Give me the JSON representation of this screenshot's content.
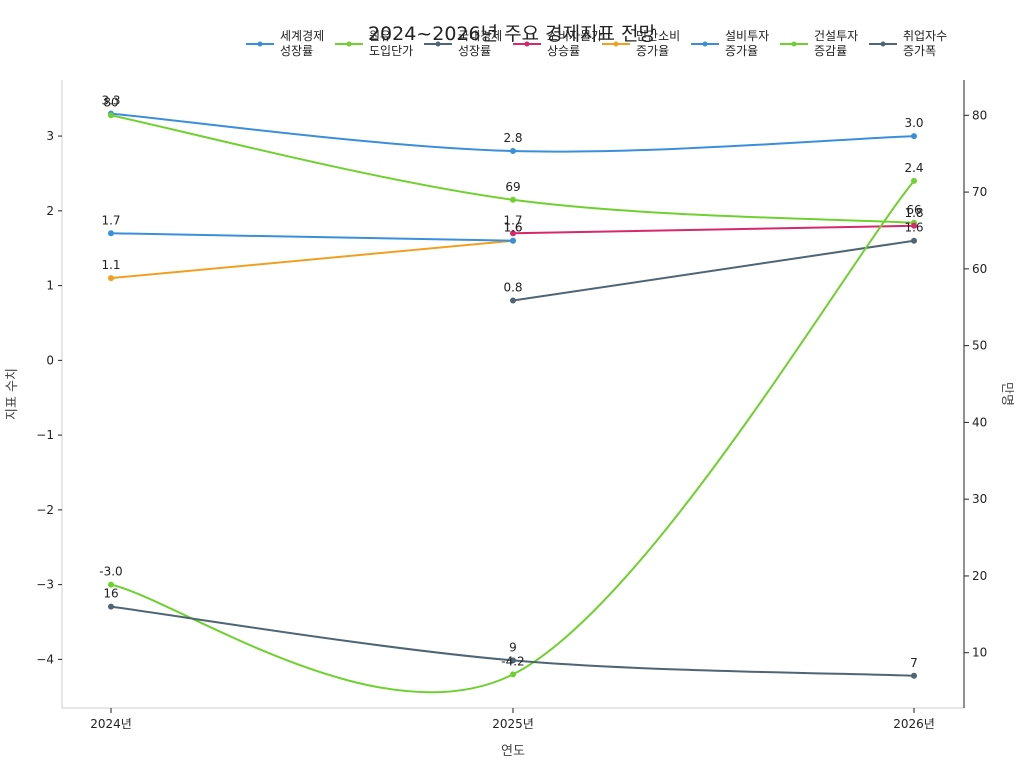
{
  "chart_data": {
    "type": "line",
    "title": "2024~2026년 주요 경제지표 전망",
    "xlabel": "연도",
    "ylabel": "지표 수치",
    "y2label": "만명",
    "categories": [
      "2024년",
      "2025년",
      "2026년"
    ],
    "ylim": [
      -4.65,
      3.75
    ],
    "y2lim": [
      2.8,
      84.6
    ],
    "yticks": [
      -4,
      -3,
      -2,
      -1,
      0,
      1,
      2,
      3
    ],
    "y2ticks": [
      10,
      20,
      30,
      40,
      50,
      60,
      70,
      80
    ],
    "legend_position": "top-right",
    "series": [
      {
        "name": "세계경제\n성장률",
        "color": "#3a8fdb",
        "axis": "left",
        "values": [
          3.3,
          2.8,
          3.0
        ],
        "labels": [
          "3.3",
          "2.8",
          "3.0"
        ]
      },
      {
        "name": "원유\n도입단가",
        "color": "#6fd12f",
        "axis": "right",
        "values": [
          80,
          69,
          66
        ],
        "labels": [
          "80",
          "69",
          "66"
        ]
      },
      {
        "name": "국내경제\n성장률",
        "color": "#4f6575",
        "axis": "left",
        "values": [
          null,
          0.8,
          1.6
        ],
        "labels": [
          "",
          "0.8",
          "1.6"
        ]
      },
      {
        "name": "소비자물가\n상승률",
        "color": "#d6286a",
        "axis": "left",
        "values": [
          null,
          1.7,
          1.8
        ],
        "labels": [
          "",
          "1.7",
          "1.8"
        ]
      },
      {
        "name": "민간소비\n증가율",
        "color": "#f0a020",
        "axis": "left",
        "values": [
          1.1,
          1.6,
          null
        ],
        "labels": [
          "1.1",
          "1.6",
          ""
        ]
      },
      {
        "name": "설비투자\n증가율",
        "color": "#3a8fdb",
        "axis": "left",
        "values": [
          1.7,
          1.6,
          null
        ],
        "labels": [
          "1.7",
          "1.6",
          ""
        ]
      },
      {
        "name": "건설투자\n증감률",
        "color": "#6fd12f",
        "axis": "left",
        "values": [
          -3.0,
          -4.2,
          2.4
        ],
        "labels": [
          "-3.0",
          "-4.2",
          "2.4"
        ]
      },
      {
        "name": "취업자수\n증가폭",
        "color": "#4f6575",
        "axis": "right",
        "values": [
          16,
          9,
          7
        ],
        "labels": [
          "16",
          "9",
          "7"
        ]
      }
    ]
  }
}
